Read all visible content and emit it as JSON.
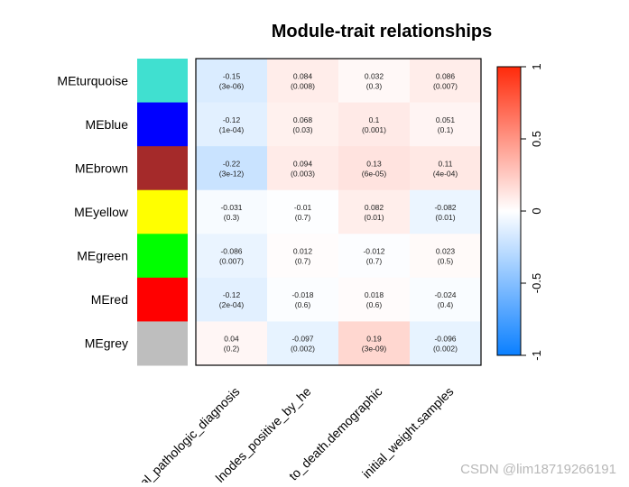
{
  "chart_data": {
    "type": "heatmap",
    "title": "Module-trait relationships",
    "modules": [
      "MEturquoise",
      "MEblue",
      "MEbrown",
      "MEyellow",
      "MEgreen",
      "MEred",
      "MEgrey"
    ],
    "module_colors": [
      "#40e0d0",
      "#0000ff",
      "#a52a2a",
      "#ffff00",
      "#00ff00",
      "#ff0000",
      "#bebebe"
    ],
    "traits": [
      "al_pathologic_diagnosis",
      "lnodes_positive_by_he",
      "to_death.demographic",
      "initial_weight.samples"
    ],
    "correlations": [
      [
        -0.15,
        0.084,
        0.032,
        0.086
      ],
      [
        -0.12,
        0.068,
        0.1,
        0.051
      ],
      [
        -0.22,
        0.094,
        0.13,
        0.11
      ],
      [
        -0.031,
        -0.01,
        0.082,
        -0.082
      ],
      [
        -0.086,
        0.012,
        -0.012,
        0.023
      ],
      [
        -0.12,
        -0.018,
        0.018,
        -0.024
      ],
      [
        0.04,
        -0.097,
        0.19,
        -0.096
      ]
    ],
    "cell_labels": [
      [
        "-0.15",
        "0.084",
        "0.032",
        "0.086"
      ],
      [
        "-0.12",
        "0.068",
        "0.1",
        "0.051"
      ],
      [
        "-0.22",
        "0.094",
        "0.13",
        "0.11"
      ],
      [
        "-0.031",
        "-0.01",
        "0.082",
        "-0.082"
      ],
      [
        "-0.086",
        "0.012",
        "-0.012",
        "0.023"
      ],
      [
        "-0.12",
        "-0.018",
        "0.018",
        "-0.024"
      ],
      [
        "0.04",
        "-0.097",
        "0.19",
        "-0.096"
      ]
    ],
    "pvalue_labels": [
      [
        "(3e-06)",
        "(0.008)",
        "(0.3)",
        "(0.007)"
      ],
      [
        "(1e-04)",
        "(0.03)",
        "(0.001)",
        "(0.1)"
      ],
      [
        "(3e-12)",
        "(0.003)",
        "(6e-05)",
        "(4e-04)"
      ],
      [
        "(0.3)",
        "(0.7)",
        "(0.01)",
        "(0.01)"
      ],
      [
        "(0.007)",
        "(0.7)",
        "(0.7)",
        "(0.5)"
      ],
      [
        "(2e-04)",
        "(0.6)",
        "(0.6)",
        "(0.4)"
      ],
      [
        "(0.2)",
        "(0.002)",
        "(3e-09)",
        "(0.002)"
      ]
    ],
    "color_scale": {
      "min": -1,
      "max": 1,
      "low": "#0a7fff",
      "mid": "#ffffff",
      "high": "#ff2a0a"
    },
    "colorbar_ticks": [
      1,
      0.5,
      0,
      -0.5,
      -1
    ],
    "colorbar_tick_labels": [
      "1",
      "0.5",
      "0",
      "-0.5",
      "-1"
    ],
    "grid": false,
    "legend": "right"
  },
  "watermark": "CSDN @lim18719266191"
}
